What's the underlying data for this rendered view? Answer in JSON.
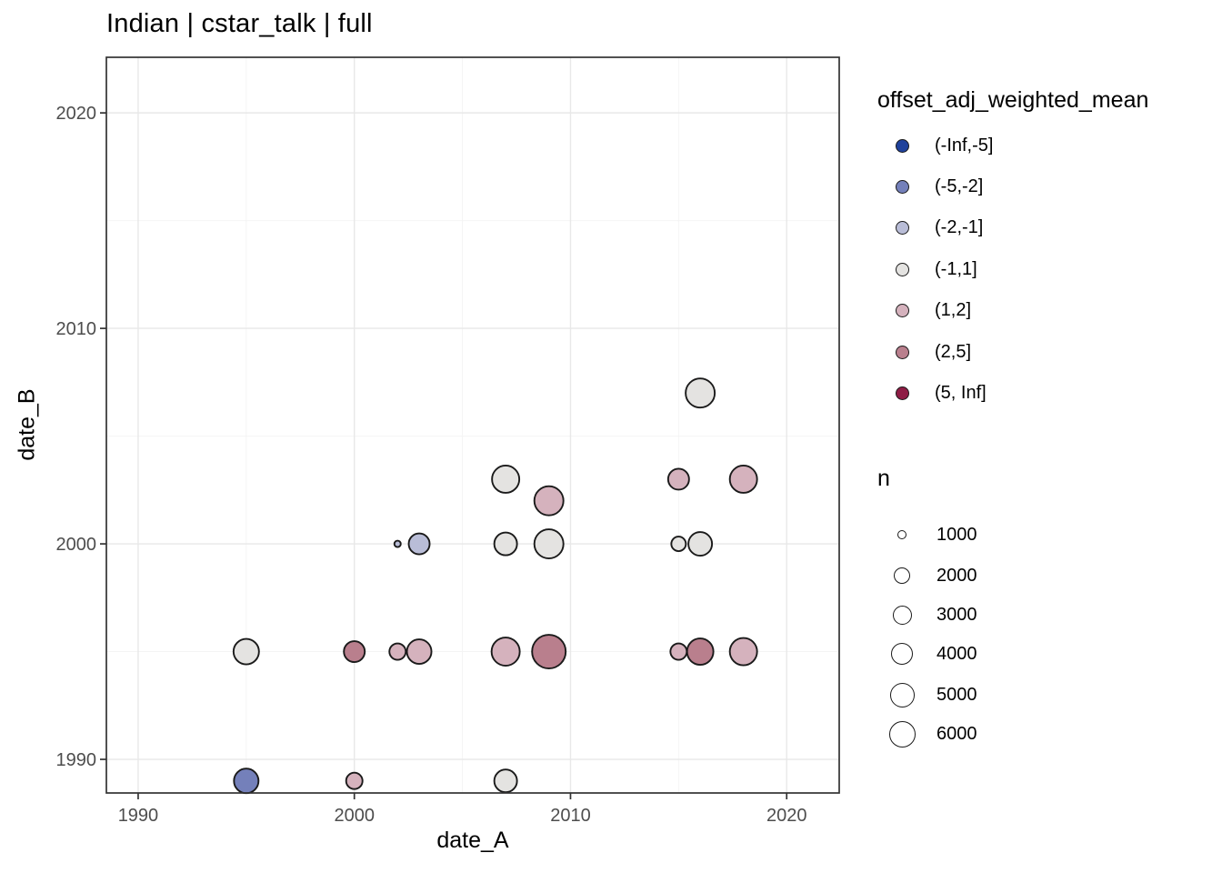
{
  "title": "Indian | cstar_talk | full",
  "style": {
    "background": "#FFFFFF",
    "panel_background": "#FFFFFF",
    "panel_border": "#333333",
    "grid_major": "#E8E8E8",
    "grid_minor": "#F4F4F4",
    "tick_color": "#333333",
    "tick_label_color": "#4D4D4D",
    "point_stroke": "#1A1A1A"
  },
  "chart_data": {
    "type": "scatter",
    "title": "Indian | cstar_talk | full",
    "xlabel": "date_A",
    "ylabel": "date_B",
    "xlim": [
      1988.53,
      2022.43
    ],
    "ylim": [
      1988.44,
      2022.58
    ],
    "x_ticks": [
      1990,
      2000,
      2010,
      2020
    ],
    "y_ticks": [
      1990,
      2000,
      2010,
      2020
    ],
    "x_minor_ticks": [
      1995,
      2005,
      2015
    ],
    "y_minor_ticks": [
      1995,
      2005,
      2015
    ],
    "grid": "major and minor, light gray on white, black panel border (ggplot theme_bw)",
    "legend_position": "right",
    "color_legend": {
      "title": "offset_adj_weighted_mean",
      "bins": [
        {
          "label": "(-Inf,-5]",
          "color": "#1F419B"
        },
        {
          "label": "(-5,-2]",
          "color": "#7480BA"
        },
        {
          "label": "(-2,-1]",
          "color": "#B9BDD7"
        },
        {
          "label": "(-1,1]",
          "color": "#E4E3E1"
        },
        {
          "label": "(1,2]",
          "color": "#D5B2BD"
        },
        {
          "label": "(2,5]",
          "color": "#B97F8D"
        },
        {
          "label": "(5, Inf]",
          "color": "#8E1C45"
        }
      ]
    },
    "size_legend": {
      "title": "n",
      "entries": [
        {
          "label": "1000",
          "n": 1000,
          "d": 10
        },
        {
          "label": "2000",
          "n": 2000,
          "d": 18
        },
        {
          "label": "3000",
          "n": 3000,
          "d": 21
        },
        {
          "label": "4000",
          "n": 4000,
          "d": 24
        },
        {
          "label": "5000",
          "n": 5000,
          "d": 27
        },
        {
          "label": "6000",
          "n": 6000,
          "d": 29
        }
      ]
    },
    "points": [
      {
        "date_A": 1995,
        "date_B": 1989,
        "bin": "(-5,-2]",
        "n": 5000,
        "d": 27
      },
      {
        "date_A": 2000,
        "date_B": 1989,
        "bin": "(1,2]",
        "n": 2000,
        "d": 18
      },
      {
        "date_A": 2007,
        "date_B": 1989,
        "bin": "(-1,1]",
        "n": 4300,
        "d": 25
      },
      {
        "date_A": 1995,
        "date_B": 1995,
        "bin": "(-1,1]",
        "n": 5400,
        "d": 28
      },
      {
        "date_A": 2000,
        "date_B": 1995,
        "bin": "(2,5]",
        "n": 3700,
        "d": 23
      },
      {
        "date_A": 2002,
        "date_B": 1995,
        "bin": "(1,2]",
        "n": 2000,
        "d": 18
      },
      {
        "date_A": 2003,
        "date_B": 1995,
        "bin": "(1,2]",
        "n": 5000,
        "d": 27
      },
      {
        "date_A": 2007,
        "date_B": 1995,
        "bin": "(1,2]",
        "n": 6800,
        "d": 31
      },
      {
        "date_A": 2009,
        "date_B": 1995,
        "bin": "(2,5]",
        "n": 9000,
        "d": 37
      },
      {
        "date_A": 2015,
        "date_B": 1995,
        "bin": "(1,2]",
        "n": 2000,
        "d": 18
      },
      {
        "date_A": 2016,
        "date_B": 1995,
        "bin": "(2,5]",
        "n": 6000,
        "d": 29
      },
      {
        "date_A": 2018,
        "date_B": 1995,
        "bin": "(1,2]",
        "n": 6400,
        "d": 30
      },
      {
        "date_A": 2002,
        "date_B": 2000,
        "bin": "(-2,-1]",
        "n": 700,
        "d": 7
      },
      {
        "date_A": 2003,
        "date_B": 2000,
        "bin": "(-2,-1]",
        "n": 3700,
        "d": 23
      },
      {
        "date_A": 2007,
        "date_B": 2000,
        "bin": "(-1,1]",
        "n": 4300,
        "d": 25
      },
      {
        "date_A": 2009,
        "date_B": 2000,
        "bin": "(-1,1]",
        "n": 7200,
        "d": 32
      },
      {
        "date_A": 2015,
        "date_B": 2000,
        "bin": "(-1,1]",
        "n": 1700,
        "d": 16
      },
      {
        "date_A": 2016,
        "date_B": 2000,
        "bin": "(-1,1]",
        "n": 4700,
        "d": 26
      },
      {
        "date_A": 2009,
        "date_B": 2002,
        "bin": "(1,2]",
        "n": 7200,
        "d": 32
      },
      {
        "date_A": 2007,
        "date_B": 2003,
        "bin": "(-1,1]",
        "n": 6400,
        "d": 30
      },
      {
        "date_A": 2015,
        "date_B": 2003,
        "bin": "(1,2]",
        "n": 3700,
        "d": 23
      },
      {
        "date_A": 2018,
        "date_B": 2003,
        "bin": "(1,2]",
        "n": 6400,
        "d": 30
      },
      {
        "date_A": 2016,
        "date_B": 2007,
        "bin": "(-1,1]",
        "n": 7200,
        "d": 32
      }
    ]
  }
}
